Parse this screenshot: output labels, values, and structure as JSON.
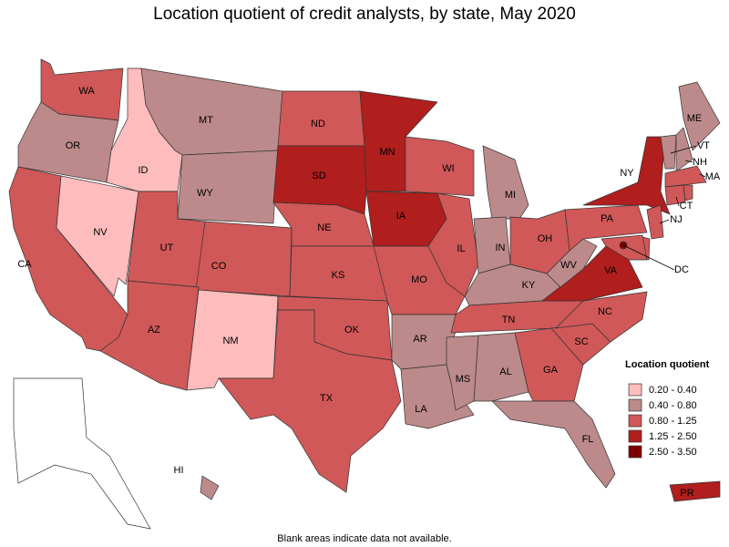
{
  "title": "Location quotient of credit analysts, by state, May 2020",
  "footnote": "Blank areas indicate data not available.",
  "legend": {
    "title": "Location quotient",
    "items": [
      {
        "label": "0.20 - 0.40",
        "color": "#ffbcbc"
      },
      {
        "label": "0.40 - 0.80",
        "color": "#bc8a8a"
      },
      {
        "label": "0.80 - 1.25",
        "color": "#d05858"
      },
      {
        "label": "1.25 - 2.50",
        "color": "#b01e1e"
      },
      {
        "label": "2.50 - 3.50",
        "color": "#7e0000"
      }
    ]
  },
  "states": [
    {
      "label": "WA",
      "color": "#d05858"
    },
    {
      "label": "OR",
      "color": "#bc8a8a"
    },
    {
      "label": "CA",
      "color": "#d05858"
    },
    {
      "label": "NV",
      "color": "#ffbcbc"
    },
    {
      "label": "ID",
      "color": "#ffbcbc"
    },
    {
      "label": "MT",
      "color": "#bc8a8a"
    },
    {
      "label": "WY",
      "color": "#bc8a8a"
    },
    {
      "label": "UT",
      "color": "#d05858"
    },
    {
      "label": "CO",
      "color": "#d05858"
    },
    {
      "label": "AZ",
      "color": "#d05858"
    },
    {
      "label": "NM",
      "color": "#ffbcbc"
    },
    {
      "label": "ND",
      "color": "#d05858"
    },
    {
      "label": "SD",
      "color": "#b01e1e"
    },
    {
      "label": "NE",
      "color": "#d05858"
    },
    {
      "label": "KS",
      "color": "#d05858"
    },
    {
      "label": "OK",
      "color": "#d05858"
    },
    {
      "label": "TX",
      "color": "#d05858"
    },
    {
      "label": "MN",
      "color": "#b01e1e"
    },
    {
      "label": "IA",
      "color": "#b01e1e"
    },
    {
      "label": "MO",
      "color": "#d05858"
    },
    {
      "label": "AR",
      "color": "#bc8a8a"
    },
    {
      "label": "LA",
      "color": "#bc8a8a"
    },
    {
      "label": "WI",
      "color": "#d05858"
    },
    {
      "label": "IL",
      "color": "#d05858"
    },
    {
      "label": "MI",
      "color": "#bc8a8a"
    },
    {
      "label": "IN",
      "color": "#bc8a8a"
    },
    {
      "label": "OH",
      "color": "#d05858"
    },
    {
      "label": "KY",
      "color": "#bc8a8a"
    },
    {
      "label": "TN",
      "color": "#d05858"
    },
    {
      "label": "MS",
      "color": "#bc8a8a"
    },
    {
      "label": "AL",
      "color": "#bc8a8a"
    },
    {
      "label": "GA",
      "color": "#d05858"
    },
    {
      "label": "FL",
      "color": "#bc8a8a"
    },
    {
      "label": "SC",
      "color": "#d05858"
    },
    {
      "label": "NC",
      "color": "#d05858"
    },
    {
      "label": "VA",
      "color": "#b01e1e"
    },
    {
      "label": "WV",
      "color": "#bc8a8a"
    },
    {
      "label": "PA",
      "color": "#d05858"
    },
    {
      "label": "NY",
      "color": "#b01e1e"
    },
    {
      "label": "ME",
      "color": "#bc8a8a"
    },
    {
      "label": "VT",
      "color": "#bc8a8a"
    },
    {
      "label": "NH",
      "color": "#bc8a8a"
    },
    {
      "label": "MA",
      "color": "#d05858"
    },
    {
      "label": "CT",
      "color": "#d05858"
    },
    {
      "color": "#d05858"
    },
    {
      "label": "NJ",
      "color": "#d05858"
    },
    {
      "color": "#d05858"
    },
    {
      "color": "#d05858"
    },
    {
      "label": "DC",
      "color": "#7e0000"
    },
    {
      "label": "HI",
      "color": "#bc8a8a"
    },
    {
      "label": "PR",
      "color": "#b01e1e"
    },
    {
      "color": "#ffffff"
    }
  ]
}
